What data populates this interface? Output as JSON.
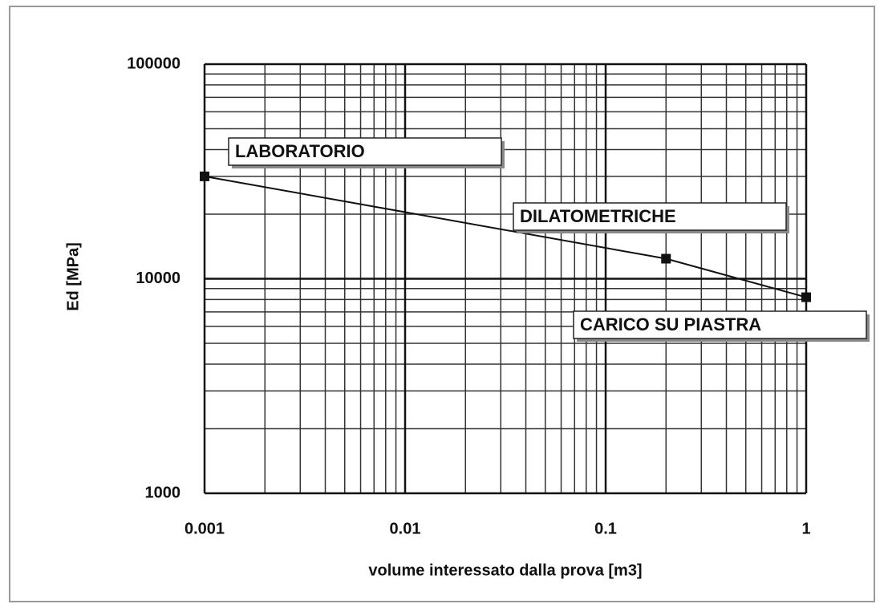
{
  "chart_data": {
    "type": "line",
    "ylabel": "Ed [MPa]",
    "xlabel": "volume interessato dalla prova [m3]",
    "x": [
      0.001,
      0.2,
      1
    ],
    "series": [
      {
        "color": "#111111",
        "values": [
          30000,
          12400,
          8200
        ]
      }
    ],
    "xlog": true,
    "ylog": true,
    "xlim": [
      0.001,
      1
    ],
    "ylim": [
      1000,
      100000
    ],
    "xticks": [
      0.001,
      0.01,
      0.1,
      1
    ],
    "yticks": [
      1000,
      10000,
      100000
    ],
    "xminor": [
      0.002,
      0.003,
      0.004,
      0.005,
      0.006,
      0.007,
      0.008,
      0.009,
      0.02,
      0.03,
      0.04,
      0.05,
      0.06,
      0.07,
      0.08,
      0.09,
      0.2,
      0.3,
      0.4,
      0.5,
      0.6,
      0.7,
      0.8,
      0.9
    ],
    "yminor": [
      2000,
      3000,
      4000,
      5000,
      6000,
      7000,
      8000,
      9000,
      20000,
      30000,
      40000,
      50000,
      60000,
      70000,
      80000,
      90000
    ],
    "grid": true,
    "annotations": [
      "LABORATORIO",
      "DILATOMETRICHE",
      "CARICO SU PIASTRA"
    ]
  }
}
